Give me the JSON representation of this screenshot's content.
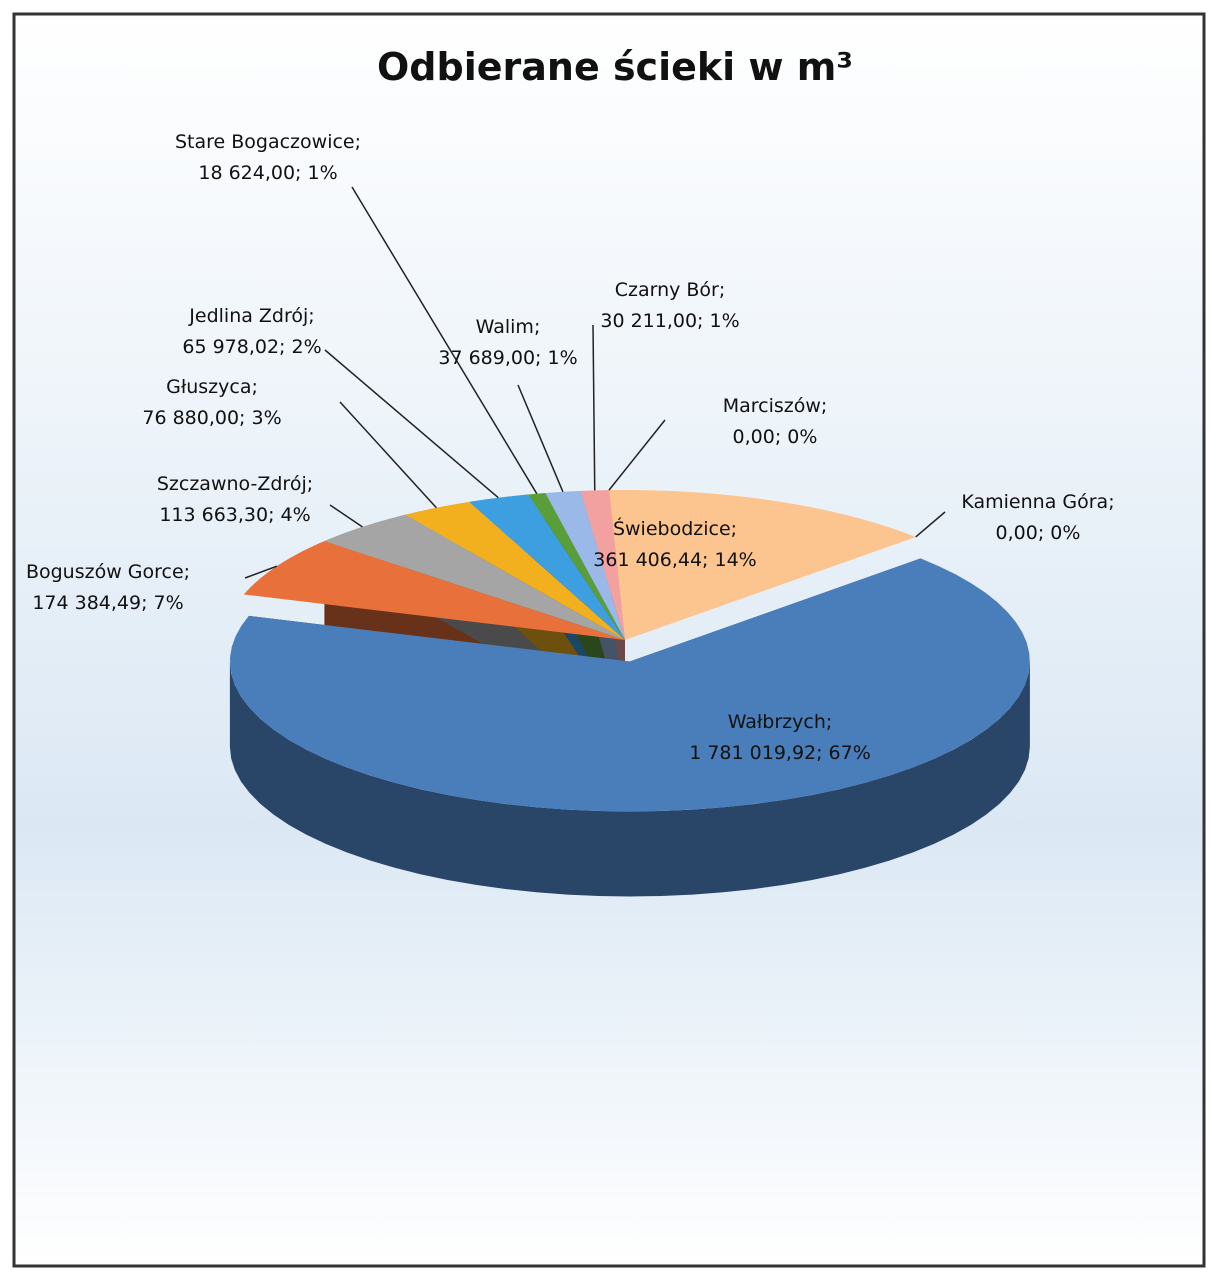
{
  "chart_data": {
    "type": "pie3d",
    "title": "Odbierane ścieki w m³",
    "separator": ";",
    "categories": [
      "Świebodzice",
      "Kamienna Góra",
      "Wałbrzych",
      "Boguszów Gorce",
      "Szczawno-Zdrój",
      "Głuszyca",
      "Jedlina Zdrój",
      "Stare Bogaczowice",
      "Walim",
      "Czarny Bór",
      "Marciszów"
    ],
    "values": [
      361406.44,
      0,
      1781019.92,
      174384.49,
      113663.3,
      76880,
      65978.02,
      18624,
      37689,
      30211,
      0
    ],
    "value_labels": [
      "361 406,44; 14%",
      "0,00; 0%",
      "1 781 019,92; 67%",
      "174 384,49; 7%",
      "113 663,30; 4%",
      "76 880,00; 3%",
      "65 978,02; 2%",
      "18 624,00; 1%",
      "37 689,00; 1%",
      "30 211,00; 1%",
      "0,00; 0%"
    ],
    "colors": [
      "#fcc58f",
      "#c0504d",
      "#4a7ebb",
      "#e8703a",
      "#a5a5a5",
      "#f2b01e",
      "#3d9ee0",
      "#5a9e3a",
      "#9ab8e8",
      "#f2a0a0",
      "#8064a2"
    ]
  }
}
